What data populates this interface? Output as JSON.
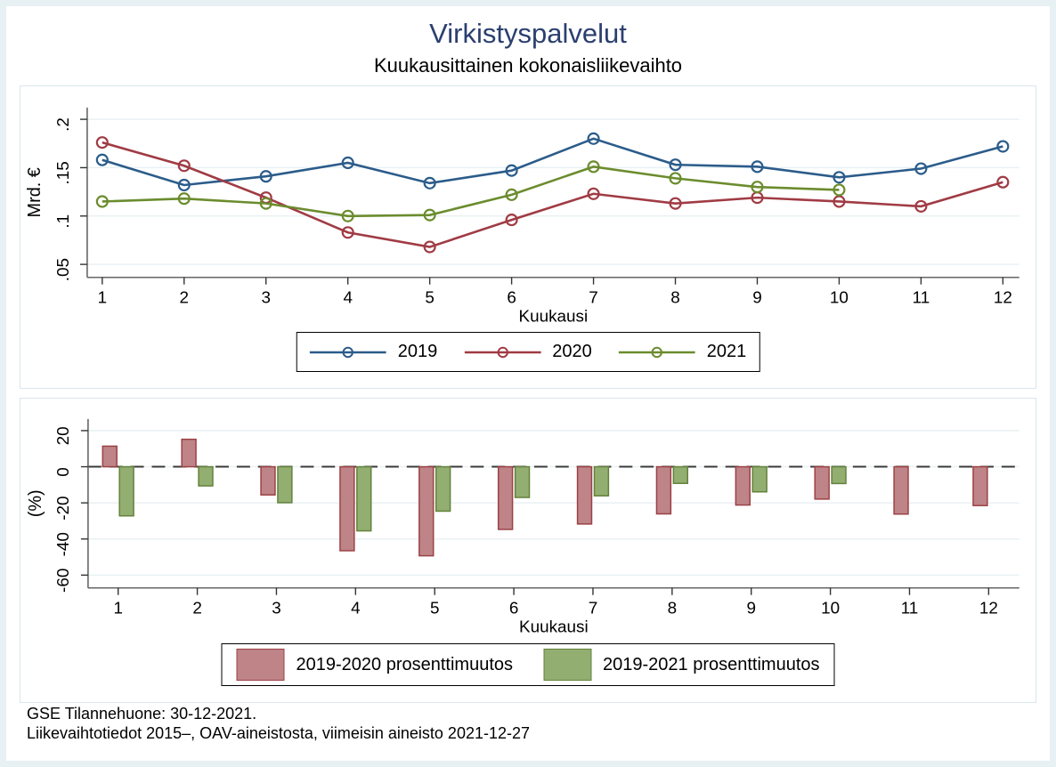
{
  "title": "Virkistyspalvelut",
  "subtitle": "Kuukausittainen kokonaisliikevaihto",
  "footer": {
    "line1": "GSE Tilannehuone: 30-12-2021.",
    "line2": "Liikevaihtotiedot 2015–, OAV-aineistosta, viimeisin aineisto 2021-12-27"
  },
  "colors": {
    "title_navy": "#2b3f6f",
    "line_2019": "#2b5c8a",
    "line_2020": "#a03b44",
    "line_2021": "#6b8c2e",
    "bar_1920_fill": "#be8487",
    "bar_1920_stroke": "#9c4146",
    "bar_1921_fill": "#92ae71",
    "bar_1921_stroke": "#64823b",
    "grid": "#e9f1f4",
    "axis": "#666666",
    "tick": "#333333",
    "zero_dash": "#3a3a3a",
    "text": "#000000"
  },
  "chart_data": [
    {
      "type": "line",
      "panel": "top",
      "x": [
        1,
        2,
        3,
        4,
        5,
        6,
        7,
        8,
        9,
        10,
        11,
        12
      ],
      "xlabel": "Kuukausi",
      "ylabel": "Mrd. €",
      "yticks": [
        0.05,
        0.1,
        0.15,
        0.2
      ],
      "ytick_labels": [
        ".05",
        ".1",
        ".15",
        ".2"
      ],
      "ylim": [
        0.035,
        0.212
      ],
      "grid": true,
      "legend_position": "bottom-box",
      "series": [
        {
          "name": "2019",
          "color_key": "line_2019",
          "values": [
            0.158,
            0.132,
            0.141,
            0.155,
            0.134,
            0.147,
            0.18,
            0.153,
            0.151,
            0.14,
            0.149,
            0.172
          ]
        },
        {
          "name": "2020",
          "color_key": "line_2020",
          "values": [
            0.176,
            0.152,
            0.119,
            0.083,
            0.068,
            0.096,
            0.123,
            0.113,
            0.119,
            0.115,
            0.11,
            0.135
          ]
        },
        {
          "name": "2021",
          "color_key": "line_2021",
          "values": [
            0.115,
            0.118,
            0.113,
            0.1,
            0.101,
            0.122,
            0.151,
            0.139,
            0.13,
            0.127,
            null,
            null
          ]
        }
      ]
    },
    {
      "type": "bar",
      "panel": "bottom",
      "categories": [
        1,
        2,
        3,
        4,
        5,
        6,
        7,
        8,
        9,
        10,
        11,
        12
      ],
      "xlabel": "Kuukausi",
      "ylabel": "(%)",
      "yticks": [
        20,
        0,
        -20,
        -40,
        -60
      ],
      "ytick_labels": [
        "20",
        "0",
        "-20",
        "-40",
        "-60"
      ],
      "ylim": [
        -67,
        26
      ],
      "grid": true,
      "zero_line": "dashed",
      "legend_position": "bottom-box",
      "series": [
        {
          "name": "2019-2020 prosenttimuutos",
          "fill_key": "bar_1920_fill",
          "stroke_key": "bar_1920_stroke",
          "values": [
            11.4,
            15.2,
            -15.6,
            -46.5,
            -49.3,
            -34.7,
            -31.7,
            -26.1,
            -21.2,
            -17.9,
            -26.2,
            -21.5
          ]
        },
        {
          "name": "2019-2021 prosenttimuutos",
          "fill_key": "bar_1921_fill",
          "stroke_key": "bar_1921_stroke",
          "values": [
            -27.2,
            -10.6,
            -19.9,
            -35.5,
            -24.6,
            -17.0,
            -16.1,
            -9.2,
            -13.9,
            -9.3,
            null,
            null
          ]
        }
      ]
    }
  ]
}
